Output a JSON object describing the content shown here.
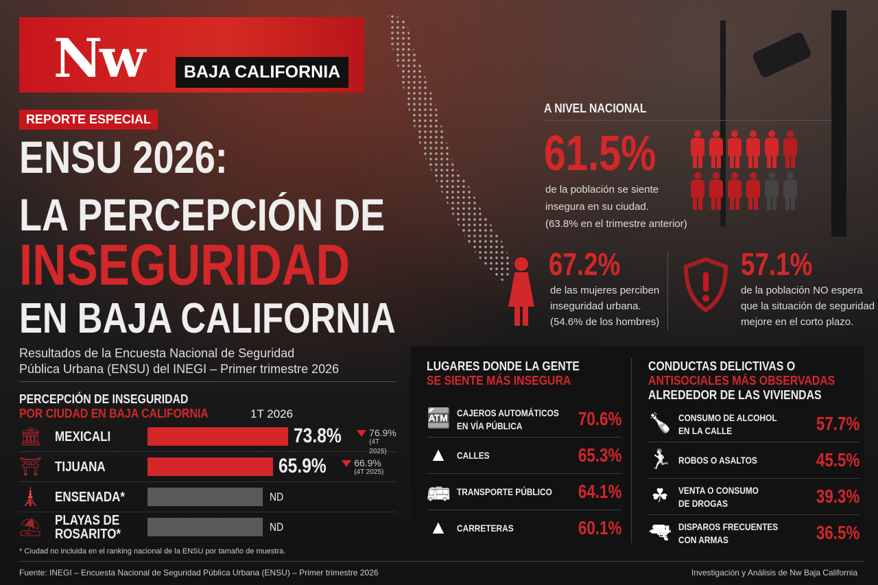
{
  "brand": {
    "logo": "Nw",
    "region": "BAJA CALIFORNIA"
  },
  "badge": "REPORTE ESPECIAL",
  "title": {
    "line1": "ENSU 2026:",
    "line2": "LA PERCEPCIÓN DE",
    "line3": "INSEGURIDAD",
    "line4": "EN BAJA CALIFORNIA"
  },
  "subtitle": {
    "line1": "Resultados de la Encuesta Nacional de Seguridad",
    "line2": "Pública Urbana (ENSU) del INEGI – Primer trimestre 2026"
  },
  "cities": {
    "heading1": "PERCEPCIÓN DE INSEGURIDAD",
    "heading2": "POR CIUDAD EN BAJA CALIFORNIA",
    "period": "1T 2026",
    "rows": [
      {
        "name": "MEXICALI",
        "icon": "government-building-icon",
        "value": 73.8,
        "value_label": "73.8%",
        "prev": "76.9%",
        "prev_period": "(4T 2025)"
      },
      {
        "name": "TIJUANA",
        "icon": "arch-monument-icon",
        "value": 65.9,
        "value_label": "65.9%",
        "prev": "66.9%",
        "prev_period": "(4T 2025)"
      },
      {
        "name": "ENSENADA*",
        "icon": "lighthouse-icon",
        "value": null,
        "value_label": "ND"
      },
      {
        "name": "PLAYAS DE",
        "name2": "ROSARITO*",
        "icon": "beach-umbrella-icon",
        "value": null,
        "value_label": "ND"
      }
    ],
    "footnote": "* Ciudad no incluida en el ranking nacional de la ENSU por tamaño de muestra."
  },
  "national": {
    "heading": "A NIVEL NACIONAL",
    "main": {
      "value": "61.5%",
      "line1": "de la población se siente",
      "line2": "insegura en su ciudad.",
      "line3": "(63.8% en el trimestre anterior)",
      "filled_figures": 10,
      "total_figures": 12
    },
    "women": {
      "value": "67.2%",
      "line1": "de las mujeres perciben",
      "line2": "inseguridad urbana.",
      "line3": "(54.6% de los hombres)"
    },
    "outlook": {
      "value": "57.1%",
      "line1": "de la población NO espera",
      "line2": "que la situación de seguridad",
      "line3": "mejore en el corto plazo."
    }
  },
  "places": {
    "heading1": "LUGARES DONDE LA GENTE",
    "heading2": "SE SIENTE MÁS INSEGURA",
    "rows": [
      {
        "label": "CAJEROS AUTOMÁTICOS",
        "label2": "EN VÍA PÚBLICA",
        "value": "70.6%"
      },
      {
        "label": "CALLES",
        "label2": "",
        "value": "65.3%"
      },
      {
        "label": "TRANSPORTE PÚBLICO",
        "label2": "",
        "value": "64.1%"
      },
      {
        "label": "CARRETERAS",
        "label2": "",
        "value": "60.1%"
      }
    ]
  },
  "conducts": {
    "heading1": "CONDUCTAS DELICTIVAS O",
    "heading2": "ANTISOCIALES MÁS OBSERVADAS",
    "heading3": "ALREDEDOR DE LAS VIVIENDAS",
    "rows": [
      {
        "label": "CONSUMO DE ALCOHOL",
        "label2": "EN LA CALLE",
        "value": "57.7%"
      },
      {
        "label": "ROBOS O ASALTOS",
        "label2": "",
        "value": "45.5%"
      },
      {
        "label": "VENTA O CONSUMO",
        "label2": "DE DROGAS",
        "value": "39.3%"
      },
      {
        "label": "DISPAROS FRECUENTES",
        "label2": "CON ARMAS",
        "value": "36.5%"
      }
    ]
  },
  "footer": {
    "source": "Fuente: INEGI – Encuesta Nacional de Seguridad Pública Urbana (ENSU) – Primer trimestre 2026",
    "credit": "Investigación y Análisis de Nw Baja California"
  },
  "colors": {
    "accent": "#d3272a",
    "nd": "#5a5a5a"
  }
}
